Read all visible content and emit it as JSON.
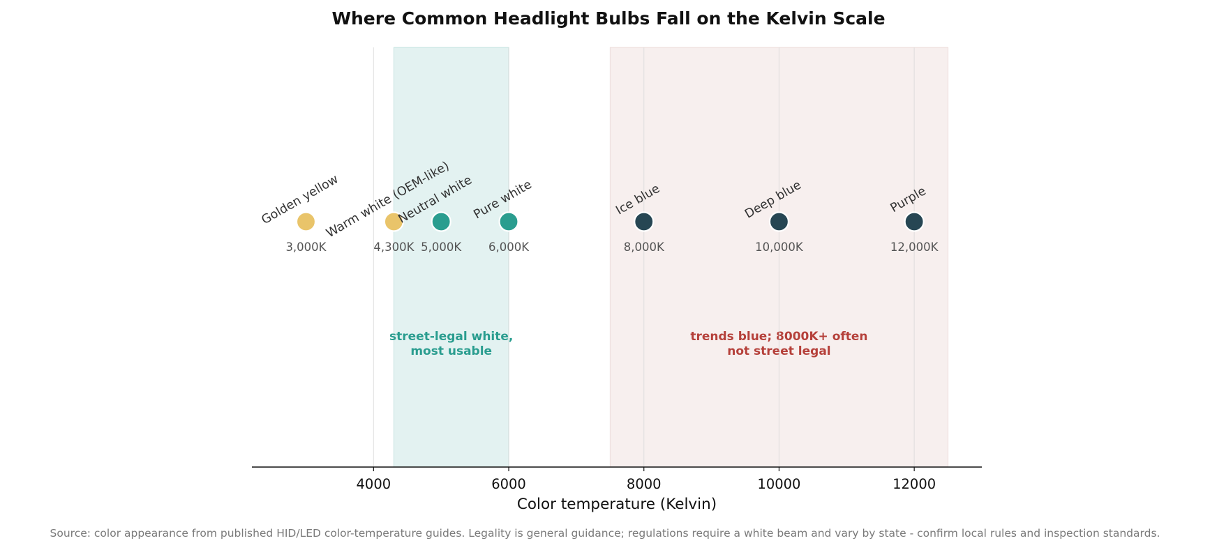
{
  "chart_data": {
    "type": "scatter",
    "title": "Where Common Headlight Bulbs Fall on the Kelvin Scale",
    "xlabel": "Color temperature (Kelvin)",
    "ylabel": "",
    "xlim": [
      2200,
      13000
    ],
    "xticks": [
      4000,
      6000,
      8000,
      10000,
      12000
    ],
    "grid": "vertical",
    "points": [
      {
        "label": "Golden yellow",
        "x": 3000,
        "value_label": "3,000K",
        "color": "#E9C46A"
      },
      {
        "label": "Warm white (OEM-like)",
        "x": 4300,
        "value_label": "4,300K",
        "color": "#E9C46A"
      },
      {
        "label": "Neutral white",
        "x": 5000,
        "value_label": "5,000K",
        "color": "#2A9D8F"
      },
      {
        "label": "Pure white",
        "x": 6000,
        "value_label": "6,000K",
        "color": "#2A9D8F"
      },
      {
        "label": "Ice blue",
        "x": 8000,
        "value_label": "8,000K",
        "color": "#264653"
      },
      {
        "label": "Deep blue",
        "x": 10000,
        "value_label": "10,000K",
        "color": "#264653"
      },
      {
        "label": "Purple",
        "x": 12000,
        "value_label": "12,000K",
        "color": "#264653"
      }
    ],
    "bands": [
      {
        "from": 4300,
        "to": 6000,
        "note_lines": [
          "street-legal white,",
          "most usable"
        ],
        "fill": "#2A9D8F",
        "text_color": "#2A9D8F"
      },
      {
        "from": 7500,
        "to": 12500,
        "note_lines": [
          "trends blue; 8000K+ often",
          "not street legal"
        ],
        "fill": "#C0837B",
        "text_color": "#B5403A"
      }
    ]
  },
  "source_note": "Source: color appearance from published HID/LED color-temperature guides. Legality is general guidance; regulations require a white beam and vary by state - confirm local rules and inspection standards."
}
